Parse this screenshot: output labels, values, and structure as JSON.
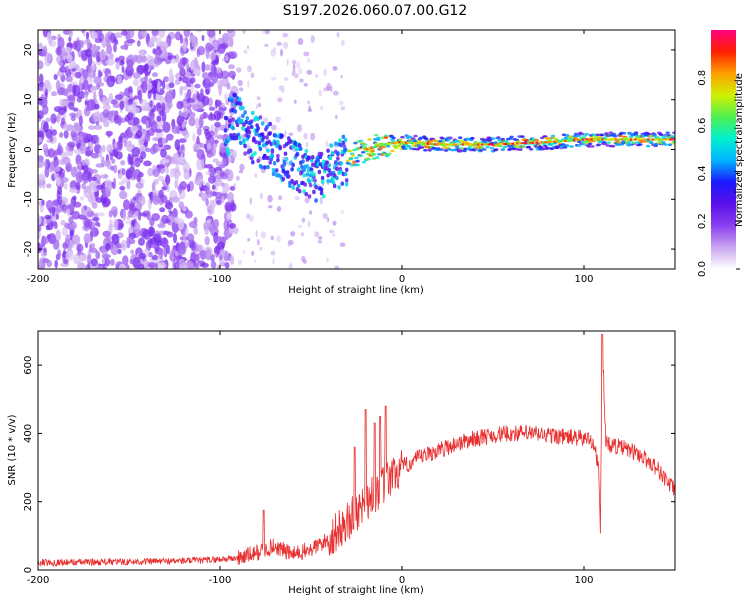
{
  "title": "S197.2026.060.07.00.G12",
  "chart_data": [
    {
      "type": "heatmap",
      "xlabel": "Height of straight line (km)",
      "ylabel": "Frequency (Hz)",
      "xlim": [
        -200,
        150
      ],
      "ylim": [
        -24,
        24
      ],
      "xticks": [
        -200,
        -100,
        0,
        100
      ],
      "yticks": [
        -20,
        -10,
        0,
        10,
        20
      ],
      "colorbar": {
        "label": "Normalized spectral amplitude",
        "range": [
          0,
          1
        ],
        "ticks": [
          "0.0",
          "0.2",
          "0.4",
          "0.6",
          "0.8"
        ],
        "colormap": [
          "#ffffff",
          "#c9a6f0",
          "#8a3ff0",
          "#5a10e8",
          "#1a1aff",
          "#00b4ff",
          "#00f0d0",
          "#50f050",
          "#d0f000",
          "#ffa000",
          "#ff2000",
          "#ff0080"
        ]
      },
      "ridge": [
        {
          "x": -95,
          "f": 8
        },
        {
          "x": -85,
          "f": 3
        },
        {
          "x": -75,
          "f": 1
        },
        {
          "x": -60,
          "f": -3
        },
        {
          "x": -50,
          "f": -6
        },
        {
          "x": -40,
          "f": -4
        },
        {
          "x": -30,
          "f": -2
        },
        {
          "x": -20,
          "f": 0
        },
        {
          "x": -10,
          "f": 1
        },
        {
          "x": 0,
          "f": 1.5
        },
        {
          "x": 20,
          "f": 1
        },
        {
          "x": 50,
          "f": 1
        },
        {
          "x": 80,
          "f": 1.5
        },
        {
          "x": 100,
          "f": 2
        },
        {
          "x": 150,
          "f": 2
        }
      ]
    },
    {
      "type": "line",
      "xlabel": "Height of straight line (km)",
      "ylabel": "SNR (10 * v/v)",
      "xlim": [
        -200,
        150
      ],
      "ylim": [
        0,
        700
      ],
      "xticks": [
        -200,
        -100,
        0,
        100
      ],
      "yticks": [
        0,
        200,
        400,
        600
      ],
      "color": "#e83030",
      "series": [
        {
          "name": "SNR",
          "x": [
            -200,
            -150,
            -110,
            -90,
            -80,
            -70,
            -60,
            -50,
            -40,
            -30,
            -20,
            -10,
            0,
            10,
            20,
            30,
            40,
            50,
            60,
            70,
            80,
            90,
            100,
            105,
            108,
            109,
            110,
            112,
            120,
            130,
            140,
            150
          ],
          "y": [
            22,
            24,
            28,
            35,
            50,
            70,
            45,
            60,
            90,
            140,
            200,
            250,
            300,
            330,
            350,
            370,
            385,
            395,
            400,
            400,
            395,
            390,
            385,
            380,
            300,
            120,
            680,
            370,
            360,
            340,
            300,
            230
          ]
        }
      ],
      "spikes": [
        {
          "x": -26,
          "y": 360
        },
        {
          "x": -20,
          "y": 470
        },
        {
          "x": -15,
          "y": 430
        },
        {
          "x": -12,
          "y": 450
        },
        {
          "x": -9,
          "y": 480
        },
        {
          "x": -76,
          "y": 175
        }
      ]
    }
  ]
}
